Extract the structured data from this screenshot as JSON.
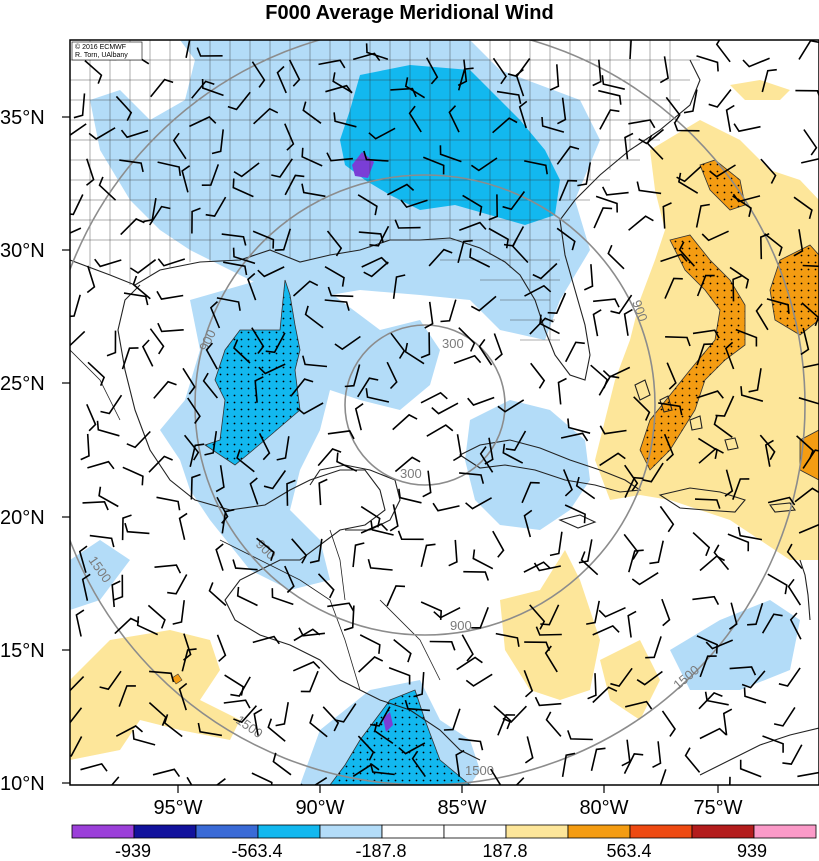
{
  "title": "F000 Average Meridional Wind",
  "credit": [
    "© 2016 ECMWF",
    "R. Torn, UAlbany"
  ],
  "lat_labels": [
    "35°N",
    "30°N",
    "25°N",
    "20°N",
    "15°N",
    "10°N"
  ],
  "lon_labels": [
    "95°W",
    "90°W",
    "85°W",
    "80°W",
    "75°W"
  ],
  "range_ring_labels": [
    "300",
    "300",
    "900",
    "900",
    "900",
    "900",
    "1500",
    "1500",
    "1500",
    "1500"
  ],
  "colorbar": {
    "labels": [
      "-939",
      "-563.4",
      "-187.8",
      "187.8",
      "563.4",
      "939"
    ],
    "colors": [
      "#9b3fd9",
      "#12129c",
      "#3a6ad6",
      "#12b8ef",
      "#b3dcf8",
      "#ffffff",
      "#ffffff",
      "#fde69a",
      "#f49c12",
      "#ee4a12",
      "#b31c1c",
      "#fb9ac8"
    ]
  },
  "colors": {
    "light_blue": "#b3dcf8",
    "cyan": "#12b8ef",
    "dark_blue": "#3a6ad6",
    "purple": "#7a3ed6",
    "yellow": "#fde69a",
    "orange": "#f49c12",
    "range_ring": "#8c8c8c"
  }
}
